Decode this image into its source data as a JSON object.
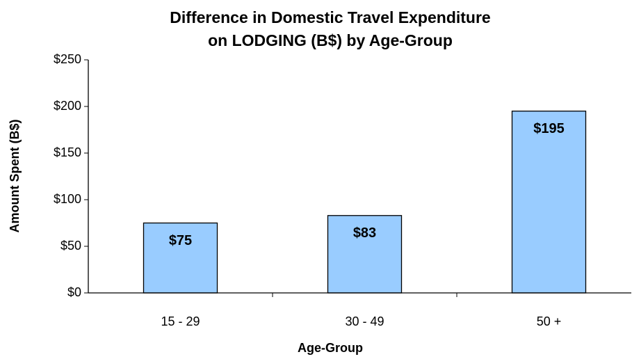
{
  "chart_data": {
    "type": "bar",
    "title": [
      "Difference in Domestic Travel Expenditure",
      "on LODGING (B$) by Age-Group"
    ],
    "x_label": "Age-Group",
    "y_label": "Amount Spent (B$)",
    "categories": [
      "15 - 29",
      "30 - 49",
      "50 +"
    ],
    "values": [
      75,
      83,
      195
    ],
    "value_labels": [
      "$75",
      "$83",
      "$195"
    ],
    "color": "#99ccff",
    "ylim": [
      0,
      250
    ],
    "yticks": [
      {
        "value": 0,
        "label": "$0"
      },
      {
        "value": 50,
        "label": "$50"
      },
      {
        "value": 100,
        "label": "$100"
      },
      {
        "value": 150,
        "label": "$150"
      },
      {
        "value": 200,
        "label": "$200"
      },
      {
        "value": 250,
        "label": "$250"
      }
    ],
    "grid": false
  }
}
